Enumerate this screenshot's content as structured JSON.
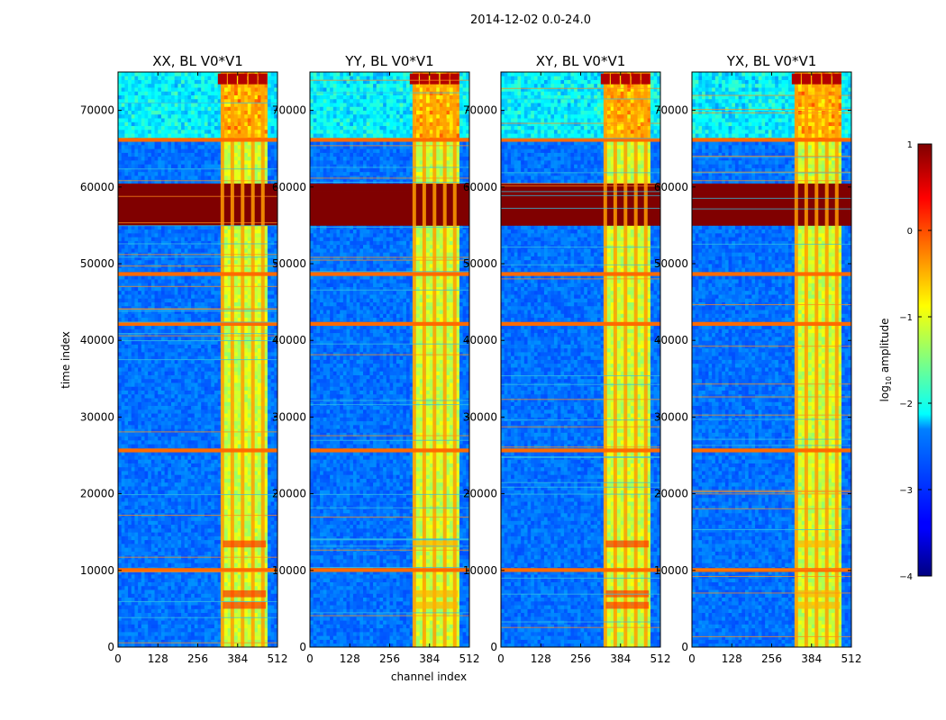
{
  "figure": {
    "suptitle": "2014-12-02 0.0-24.0",
    "xlabel": "channel index",
    "ylabel": "time index"
  },
  "chart_data": {
    "type": "heatmap",
    "suptitle": "2014-12-02 0.0-24.0",
    "xlabel": "channel index",
    "ylabel": "time index",
    "xlim": [
      0,
      512
    ],
    "ylim": [
      0,
      75000
    ],
    "xticks": [
      0,
      128,
      256,
      384,
      512
    ],
    "yticks": [
      0,
      10000,
      20000,
      30000,
      40000,
      50000,
      60000,
      70000
    ],
    "colorscale": "jet",
    "panels": [
      {
        "title": "XX, BL V0*V1"
      },
      {
        "title": "YY, BL V0*V1"
      },
      {
        "title": "XY, BL V0*V1"
      },
      {
        "title": "YX, BL V0*V1"
      }
    ],
    "colorbar": {
      "label": "log10 amplitude",
      "label_main": "log",
      "label_sub": "10",
      "label_rest": " amplitude",
      "range": [
        -4,
        1
      ],
      "ticks": [
        "−4",
        "−3",
        "−2",
        "−1",
        "0",
        "1"
      ]
    },
    "features": {
      "saturated_time_block": [
        54800,
        60500
      ],
      "flagged_time_bands": [
        9800,
        25400,
        41900,
        48400,
        65900
      ],
      "bright_channel_band": [
        327,
        485
      ],
      "bright_channel_columns": [
        335,
        367,
        400,
        433,
        465
      ]
    }
  }
}
